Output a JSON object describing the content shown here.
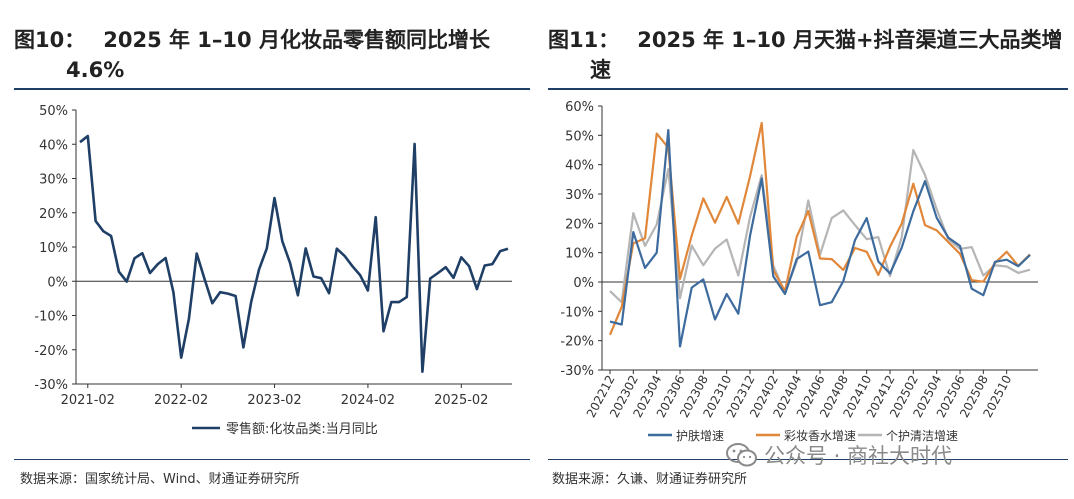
{
  "left": {
    "title_num": "图10：",
    "title_text": "2025 年 1–10 月化妆品零售额同比增长",
    "title_text2": "4.6%",
    "source": "数据来源：国家统计局、Wind、财通证券研究所"
  },
  "right": {
    "title_num": "图11：",
    "title_text": "2025 年 1–10 月天猫+抖音渠道三大品类增",
    "title_text2": "速",
    "source": "数据来源：久谦、财通证券研究所"
  },
  "watermark": {
    "text": "公众号 · 商社大时代"
  },
  "colors": {
    "navy": "#1f3f66",
    "blue": "#3d6b9e",
    "orange": "#e0873a",
    "gray": "#b5b5b5"
  },
  "chart_data": [
    {
      "type": "line",
      "title": "2025 年 1–10 月化妆品零售额同比增长4.6%",
      "ylim": [
        -30,
        50
      ],
      "yticks": [
        "50%",
        "40%",
        "30%",
        "20%",
        "10%",
        "0%",
        "-10%",
        "-20%",
        "-30%"
      ],
      "xticks": [
        "2021-02",
        "2022-02",
        "2023-02",
        "2024-02",
        "2025-02"
      ],
      "x_start": "2021-01",
      "series": [
        {
          "name": "零售额:化妆品类:当月同比",
          "values": [
            40.6,
            42.4,
            17.6,
            14.6,
            13.2,
            2.8,
            -0.1,
            6.7,
            8.2,
            2.4,
            5.0,
            6.8,
            -3.2,
            -22.3,
            -11.0,
            8.1,
            0.7,
            -6.4,
            -3.2,
            -3.6,
            -4.3,
            -19.3,
            -6.0,
            3.4,
            9.6,
            24.3,
            11.7,
            5.3,
            -4.1,
            9.6,
            1.4,
            0.9,
            -3.5,
            9.5,
            7.4,
            4.4,
            1.8,
            -2.7,
            18.7,
            -14.6,
            -6.1,
            -6.1,
            -4.6,
            40.1,
            -26.4,
            0.8,
            2.4,
            4.1,
            1.0,
            7.0,
            4.4,
            -2.3,
            4.6,
            5.0,
            8.8,
            9.5
          ]
        }
      ]
    },
    {
      "type": "line",
      "title": "2025 年 1–10 月天猫+抖音渠道三大品类增速",
      "ylim": [
        -30,
        60
      ],
      "yticks": [
        "60%",
        "50%",
        "40%",
        "30%",
        "20%",
        "10%",
        "0%",
        "-10%",
        "-20%",
        "-30%"
      ],
      "xticks": [
        "202212",
        "202302",
        "202304",
        "202306",
        "202308",
        "202310",
        "202312",
        "202402",
        "202404",
        "202406",
        "202408",
        "202410",
        "202412",
        "202502",
        "202504",
        "202506",
        "202508",
        "202510"
      ],
      "series": [
        {
          "name": "护肤增速",
          "values": [
            -13.5,
            -14.5,
            17.0,
            4.8,
            10.0,
            51.8,
            -22.0,
            -1.9,
            0.9,
            -12.8,
            -4.1,
            -10.8,
            15.7,
            35.3,
            1.9,
            -4.1,
            7.8,
            10.4,
            -7.9,
            -6.9,
            0.3,
            14.3,
            21.8,
            7.0,
            2.9,
            11.7,
            24.1,
            34.4,
            21.9,
            15.1,
            12.3,
            -2.3,
            -4.5,
            6.9,
            7.6,
            5.4,
            9.2
          ]
        },
        {
          "name": "彩妆香水增速",
          "values": [
            -18.0,
            -8.5,
            13.2,
            14.9,
            50.6,
            45.8,
            1.1,
            15.8,
            28.5,
            20.2,
            29.0,
            19.9,
            36.0,
            54.2,
            4.1,
            -3.1,
            15.4,
            24.2,
            8.0,
            7.8,
            4.1,
            11.6,
            10.3,
            2.4,
            12.0,
            19.9,
            33.5,
            19.4,
            17.6,
            13.6,
            9.6,
            0.6,
            0.1,
            6.5,
            10.3,
            5.5,
            9.4
          ]
        },
        {
          "name": "个护清洁增速",
          "values": [
            -3.1,
            -6.9,
            23.5,
            12.3,
            19.6,
            38.5,
            -5.5,
            12.4,
            5.7,
            11.4,
            14.5,
            2.2,
            22.1,
            36.4,
            5.6,
            -3.8,
            6.9,
            27.8,
            9.3,
            21.8,
            24.4,
            19.4,
            14.6,
            15.3,
            2.0,
            15.2,
            45.0,
            36.5,
            24.8,
            14.6,
            11.3,
            11.9,
            2.2,
            5.7,
            5.3,
            3.1,
            4.2
          ]
        }
      ]
    }
  ]
}
